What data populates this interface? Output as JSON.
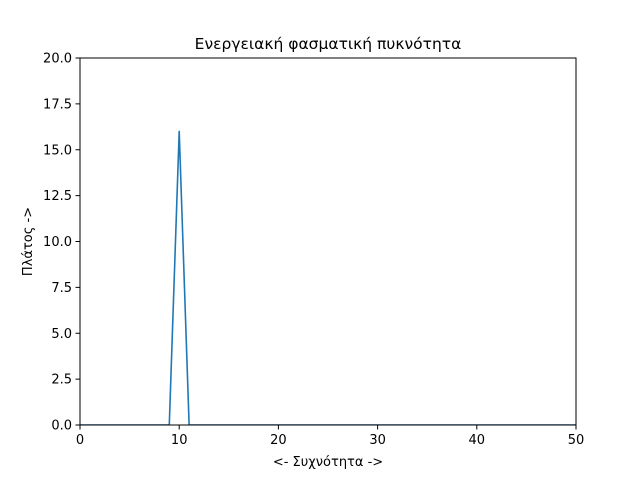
{
  "chart_data": {
    "type": "line",
    "title": "Ενεργειακή φασματική πυκνότητα",
    "xlabel": "<- Συχνότητα ->",
    "ylabel": "Πλάτος ->",
    "xlim": [
      0,
      50
    ],
    "ylim": [
      0,
      20
    ],
    "xticks": [
      "0",
      "10",
      "20",
      "30",
      "40",
      "50"
    ],
    "yticks": [
      "0.0",
      "2.5",
      "5.0",
      "7.5",
      "10.0",
      "12.5",
      "15.0",
      "17.5",
      "20.0"
    ],
    "grid": false,
    "legend": "none",
    "series": [
      {
        "color": "#1f77b4",
        "x": [
          0,
          1,
          2,
          3,
          4,
          5,
          6,
          7,
          8,
          9,
          10,
          11,
          12,
          13,
          14,
          15,
          16,
          17,
          18,
          19,
          20,
          21,
          22,
          23,
          24,
          25,
          26,
          27,
          28,
          29,
          30,
          31,
          32,
          33,
          34,
          35,
          36,
          37,
          38,
          39,
          40,
          41,
          42,
          43,
          44,
          45,
          46,
          47,
          48,
          49,
          50
        ],
        "y": [
          0,
          0,
          0,
          0,
          0,
          0,
          0,
          0,
          0,
          0,
          16,
          0,
          0,
          0,
          0,
          0,
          0,
          0,
          0,
          0,
          0,
          0,
          0,
          0,
          0,
          0,
          0,
          0,
          0,
          0,
          0,
          0,
          0,
          0,
          0,
          0,
          0,
          0,
          0,
          0,
          0,
          0,
          0,
          0,
          0,
          0,
          0,
          0,
          0,
          0,
          0
        ]
      }
    ]
  }
}
